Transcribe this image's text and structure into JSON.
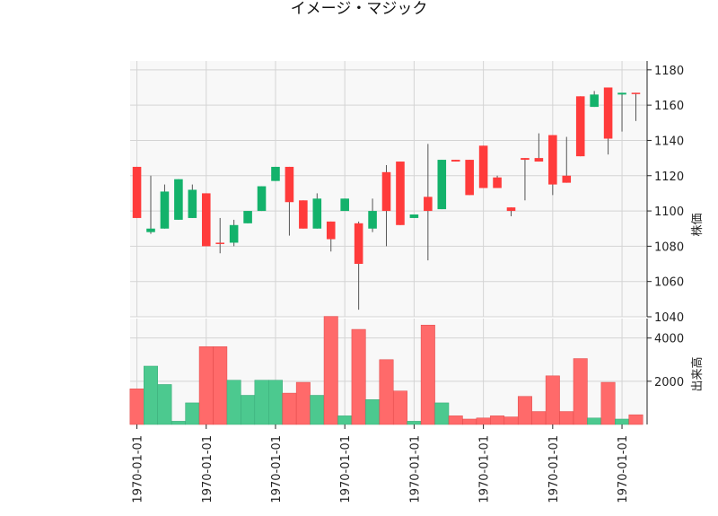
{
  "chart_data": {
    "type": "candlestick",
    "title": "イメージ・マジック",
    "price_axis": {
      "label": "株価",
      "ylim": [
        1040,
        1185
      ],
      "ticks": [
        1040,
        1060,
        1080,
        1100,
        1120,
        1140,
        1160,
        1180
      ],
      "tick_labels": [
        "1040",
        "1060",
        "1080",
        "1100",
        "1120",
        "1140",
        "1160",
        "1180"
      ]
    },
    "volume_axis": {
      "label": "出来高",
      "ylim": [
        0,
        4900
      ],
      "ticks": [
        2000,
        4000
      ],
      "tick_labels": [
        "2000",
        "4000"
      ]
    },
    "x_tick_labels": [
      "1970-01-01",
      "1970-01-01",
      "1970-01-01",
      "1970-01-01",
      "1970-01-01",
      "1970-01-01",
      "1970-01-01",
      "1970-01-01"
    ],
    "x_tick_every": 5,
    "grid": true,
    "colors": {
      "up": "#ff3b3b",
      "down": "#13b26b",
      "volume_up": "#ff6a6a",
      "volume_down": "#4cc98f",
      "wick": "#555555",
      "grid": "#d4d4d4",
      "plot_bg": "#f8f8f8"
    },
    "candles": [
      {
        "open": 1096,
        "high": 1125,
        "low": 1096,
        "close": 1125,
        "volume": 1650
      },
      {
        "open": 1090,
        "high": 1120,
        "low": 1087,
        "close": 1088,
        "volume": 2700
      },
      {
        "open": 1111,
        "high": 1115,
        "low": 1090,
        "close": 1090,
        "volume": 1850
      },
      {
        "open": 1118,
        "high": 1118,
        "low": 1095,
        "close": 1095,
        "volume": 150
      },
      {
        "open": 1112,
        "high": 1115,
        "low": 1096,
        "close": 1096,
        "volume": 1000
      },
      {
        "open": 1080,
        "high": 1110,
        "low": 1080,
        "close": 1110,
        "volume": 3600
      },
      {
        "open": 1082,
        "high": 1096,
        "low": 1076,
        "close": 1082,
        "volume": 3600
      },
      {
        "open": 1092,
        "high": 1095,
        "low": 1080,
        "close": 1082,
        "volume": 2050
      },
      {
        "open": 1100,
        "high": 1100,
        "low": 1093,
        "close": 1093,
        "volume": 1350
      },
      {
        "open": 1114,
        "high": 1114,
        "low": 1100,
        "close": 1100,
        "volume": 2050
      },
      {
        "open": 1125,
        "high": 1125,
        "low": 1117,
        "close": 1117,
        "volume": 2050
      },
      {
        "open": 1105,
        "high": 1125,
        "low": 1086,
        "close": 1125,
        "volume": 1450
      },
      {
        "open": 1090,
        "high": 1106,
        "low": 1090,
        "close": 1106,
        "volume": 1950
      },
      {
        "open": 1107,
        "high": 1110,
        "low": 1090,
        "close": 1090,
        "volume": 1350
      },
      {
        "open": 1084,
        "high": 1094,
        "low": 1077,
        "close": 1094,
        "volume": 5000
      },
      {
        "open": 1107,
        "high": 1107,
        "low": 1100,
        "close": 1100,
        "volume": 400
      },
      {
        "open": 1070,
        "high": 1094,
        "low": 1044,
        "close": 1093,
        "volume": 4400
      },
      {
        "open": 1100,
        "high": 1107,
        "low": 1088,
        "close": 1090,
        "volume": 1150
      },
      {
        "open": 1100,
        "high": 1126,
        "low": 1080,
        "close": 1122,
        "volume": 3000
      },
      {
        "open": 1092,
        "high": 1128,
        "low": 1092,
        "close": 1128,
        "volume": 1550
      },
      {
        "open": 1098,
        "high": 1098,
        "low": 1096,
        "close": 1096,
        "volume": 150
      },
      {
        "open": 1100,
        "high": 1138,
        "low": 1072,
        "close": 1108,
        "volume": 4600
      },
      {
        "open": 1129,
        "high": 1129,
        "low": 1101,
        "close": 1101,
        "volume": 1000
      },
      {
        "open": 1128,
        "high": 1129,
        "low": 1128,
        "close": 1129,
        "volume": 400
      },
      {
        "open": 1109,
        "high": 1129,
        "low": 1109,
        "close": 1129,
        "volume": 250
      },
      {
        "open": 1113,
        "high": 1137,
        "low": 1113,
        "close": 1137,
        "volume": 300
      },
      {
        "open": 1113,
        "high": 1120,
        "low": 1113,
        "close": 1119,
        "volume": 400
      },
      {
        "open": 1100,
        "high": 1102,
        "low": 1097,
        "close": 1102,
        "volume": 350
      },
      {
        "open": 1129,
        "high": 1130,
        "low": 1106,
        "close": 1130,
        "volume": 1300
      },
      {
        "open": 1128,
        "high": 1144,
        "low": 1128,
        "close": 1130,
        "volume": 600
      },
      {
        "open": 1115,
        "high": 1143,
        "low": 1109,
        "close": 1143,
        "volume": 2250
      },
      {
        "open": 1116,
        "high": 1142,
        "low": 1116,
        "close": 1120,
        "volume": 600
      },
      {
        "open": 1131,
        "high": 1165,
        "low": 1131,
        "close": 1165,
        "volume": 3050
      },
      {
        "open": 1166,
        "high": 1168,
        "low": 1159,
        "close": 1159,
        "volume": 300
      },
      {
        "open": 1141,
        "high": 1170,
        "low": 1132,
        "close": 1170,
        "volume": 1950
      },
      {
        "open": 1167,
        "high": 1167,
        "low": 1145,
        "close": 1166,
        "volume": 250
      },
      {
        "open": 1167,
        "high": 1167,
        "low": 1151,
        "close": 1167,
        "volume": 450
      }
    ]
  }
}
